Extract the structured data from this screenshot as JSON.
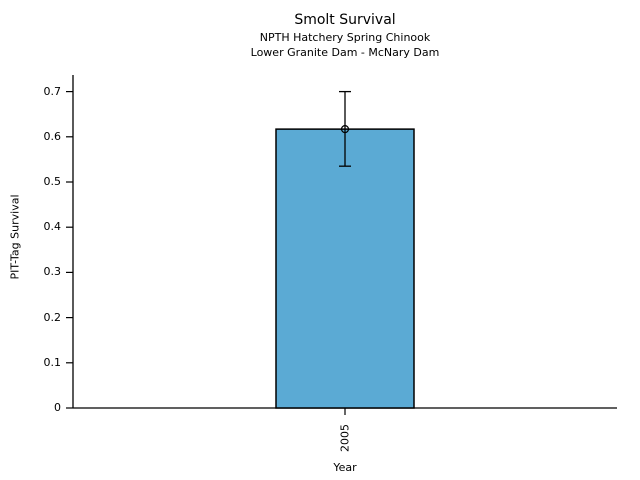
{
  "figure": {
    "background": "#ffffff",
    "text_color": "#000000"
  },
  "chart_data": {
    "type": "bar",
    "title": "Smolt Survival",
    "subtitle1": "NPTH Hatchery Spring Chinook",
    "subtitle2": "Lower Granite Dam - McNary Dam",
    "xlabel": "Year",
    "ylabel": "PIT-Tag Survival",
    "categories": [
      "2005"
    ],
    "values": [
      0.617
    ],
    "error_low": [
      0.535
    ],
    "error_high": [
      0.7
    ],
    "ylim": [
      0,
      0.7
    ],
    "yticks": [
      0,
      0.1,
      0.2,
      0.3,
      0.4,
      0.5,
      0.6,
      0.7
    ],
    "ytick_labels": [
      "0",
      "0.1",
      "0.2",
      "0.3",
      "0.4",
      "0.5",
      "0.6",
      "0.7"
    ],
    "x_tick_rotation": 90,
    "bar_color": "#5baad4",
    "bar_edge_color": "#000000",
    "error_bar_color": "#000000",
    "marker": "open-circle",
    "grid": false,
    "legend": "none"
  }
}
